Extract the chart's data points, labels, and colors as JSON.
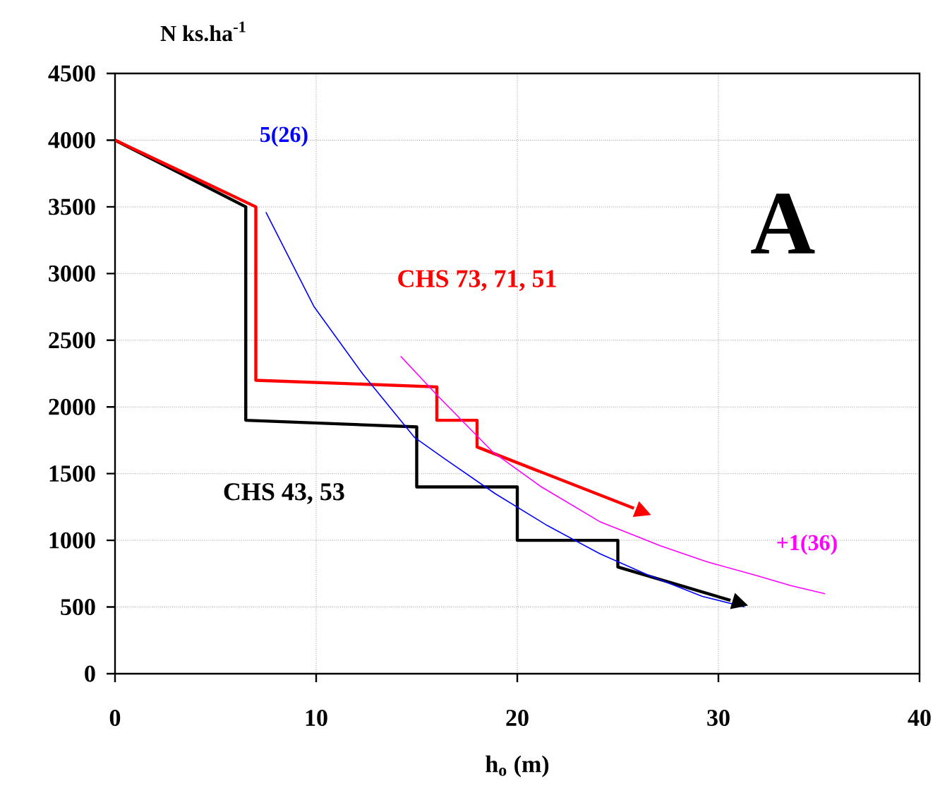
{
  "chart_data": {
    "type": "line",
    "xlabel": "h$_{o}$ (m)",
    "ylabel": "N ks.ha$^{-1}$",
    "xlim": [
      0,
      40
    ],
    "ylim": [
      0,
      4500
    ],
    "xticks": [
      0,
      10,
      20,
      30,
      40
    ],
    "yticks": [
      0,
      500,
      1000,
      1500,
      2000,
      2500,
      3000,
      3500,
      4000,
      4500
    ],
    "grid": true,
    "legend": false,
    "annotations": [
      "A"
    ],
    "series": [
      {
        "name": "CHS 43, 53",
        "color": "#000000",
        "x": [
          0,
          6.5,
          6.5,
          15,
          15,
          20,
          20,
          25,
          25,
          30.6
        ],
        "values": [
          4000,
          3500,
          1900,
          1850,
          1400,
          1400,
          1000,
          1000,
          800,
          550
        ]
      },
      {
        "name": "CHS 73, 71, 51",
        "color": "#ff0000",
        "x": [
          0,
          7,
          7,
          16,
          16,
          18,
          18,
          25.8
        ],
        "values": [
          4000,
          3500,
          2200,
          2150,
          1900,
          1900,
          1700,
          1240
        ]
      },
      {
        "name": "5(26)",
        "color": "#0000ff",
        "x": [
          7.5,
          9.9,
          12.3,
          14.9,
          16.4,
          18.9,
          21.5,
          24.1,
          26.5,
          29.2,
          31.3
        ],
        "values": [
          3460,
          2750,
          2250,
          1770,
          1610,
          1350,
          1110,
          900,
          740,
          580,
          500
        ]
      },
      {
        "name": "+1(36)",
        "color": "#ff00ff",
        "x": [
          14.2,
          16.0,
          18.8,
          21.2,
          24.1,
          27.1,
          29.4,
          31.8,
          33.6,
          35.3
        ],
        "values": [
          2380,
          2090,
          1660,
          1400,
          1140,
          960,
          840,
          740,
          660,
          600
        ]
      }
    ]
  }
}
